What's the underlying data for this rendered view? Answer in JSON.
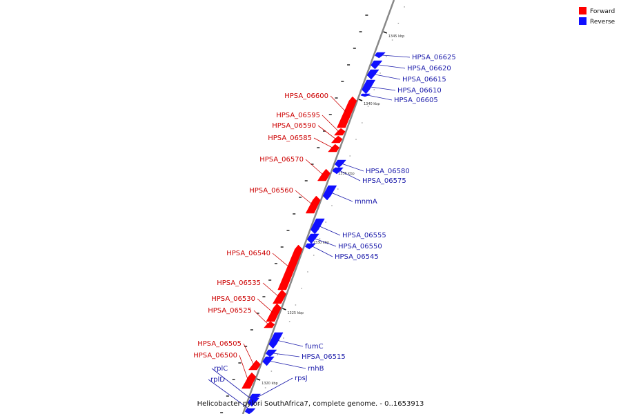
{
  "caption": "Helicobacter pylori SouthAfrica7, complete genome. - 0..1653913",
  "legend": [
    {
      "label": "Forward",
      "color": "#ff0000"
    },
    {
      "label": "Reverse",
      "color": "#1010ff"
    }
  ],
  "colors": {
    "forward": "#ff0000",
    "reverse": "#1010ff",
    "forward_label": "#cc0000",
    "reverse_label": "#1a1aaa",
    "backbone": "#888888"
  },
  "ticks": [
    {
      "label": "1345 kbp"
    },
    {
      "label": "1340 kbp"
    },
    {
      "label": "1335 kbp"
    },
    {
      "label": "1330 kbp"
    },
    {
      "label": "1325 kbp"
    },
    {
      "label": "1320 kbp"
    }
  ],
  "genes": [
    {
      "name": "HPSA_06625",
      "strand": "reverse"
    },
    {
      "name": "HPSA_06620",
      "strand": "reverse"
    },
    {
      "name": "HPSA_06615",
      "strand": "reverse"
    },
    {
      "name": "HPSA_06610",
      "strand": "reverse"
    },
    {
      "name": "HPSA_06605",
      "strand": "reverse"
    },
    {
      "name": "HPSA_06600",
      "strand": "forward"
    },
    {
      "name": "HPSA_06595",
      "strand": "forward"
    },
    {
      "name": "HPSA_06590",
      "strand": "forward"
    },
    {
      "name": "HPSA_06585",
      "strand": "forward"
    },
    {
      "name": "HPSA_06580",
      "strand": "reverse"
    },
    {
      "name": "HPSA_06575",
      "strand": "reverse"
    },
    {
      "name": "HPSA_06570",
      "strand": "forward"
    },
    {
      "name": "mnmA",
      "strand": "reverse"
    },
    {
      "name": "HPSA_06560",
      "strand": "forward"
    },
    {
      "name": "HPSA_06555",
      "strand": "reverse"
    },
    {
      "name": "HPSA_06550",
      "strand": "reverse"
    },
    {
      "name": "HPSA_06545",
      "strand": "reverse"
    },
    {
      "name": "HPSA_06540",
      "strand": "forward"
    },
    {
      "name": "HPSA_06535",
      "strand": "forward"
    },
    {
      "name": "HPSA_06530",
      "strand": "forward"
    },
    {
      "name": "HPSA_06525",
      "strand": "forward"
    },
    {
      "name": "fumC",
      "strand": "reverse"
    },
    {
      "name": "HPSA_06515",
      "strand": "reverse"
    },
    {
      "name": "rnhB",
      "strand": "reverse"
    },
    {
      "name": "HPSA_06505",
      "strand": "forward"
    },
    {
      "name": "HPSA_06500",
      "strand": "forward"
    },
    {
      "name": "rpsJ",
      "strand": "reverse"
    },
    {
      "name": "rplC",
      "strand": "reverse"
    },
    {
      "name": "rplD",
      "strand": "reverse"
    }
  ]
}
